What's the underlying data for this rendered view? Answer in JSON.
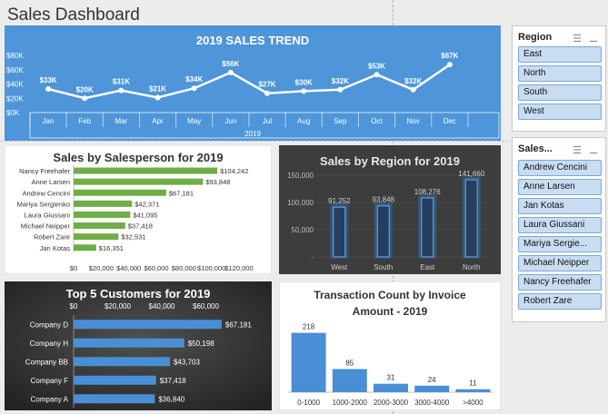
{
  "dashboard": {
    "title": "Sales Dashboard"
  },
  "trend": {
    "title": "2019 SALES TREND",
    "year": "2019",
    "chart_data": {
      "type": "line",
      "title": "2019 SALES TREND",
      "categories": [
        "Jan",
        "Feb",
        "Mar",
        "Apr",
        "May",
        "Jun",
        "Jul",
        "Aug",
        "Sep",
        "Oct",
        "Nov",
        "Dec"
      ],
      "values": [
        33,
        20,
        31,
        21,
        34,
        56,
        27,
        30,
        32,
        53,
        32,
        67
      ],
      "labels": [
        "$33K",
        "$20K",
        "$31K",
        "$21K",
        "$34K",
        "$56K",
        "$27K",
        "$30K",
        "$32K",
        "$53K",
        "$32K",
        "$67K"
      ],
      "yticks": [
        "$0K",
        "$20K",
        "$40K",
        "$60K",
        "$80K"
      ],
      "ylim": [
        0,
        80
      ],
      "xlabel": "2019"
    }
  },
  "salesperson": {
    "title": "Sales by Salesperson for 2019",
    "chart_data": {
      "type": "bar",
      "title": "Sales by Salesperson for 2019",
      "categories": [
        "Nancy Freehafer",
        "Anne Larsen",
        "Andrew Cencini",
        "Mariya Sergienko",
        "Laura Giussani",
        "Michael Neipper",
        "Robert Zare",
        "Jan Kotas"
      ],
      "values": [
        104242,
        93848,
        67181,
        42371,
        41095,
        37418,
        32531,
        16351
      ],
      "labels": [
        "$104,242",
        "$93,848",
        "$67,181",
        "$42,371",
        "$41,095",
        "$37,418",
        "$32,531",
        "$16,351"
      ],
      "xticks": [
        "$0",
        "$20,000",
        "$40,000",
        "$60,000",
        "$80,000",
        "$100,000",
        "$120,000"
      ],
      "xlim": [
        0,
        120000
      ]
    }
  },
  "region": {
    "title": "Sales by Region for 2019",
    "chart_data": {
      "type": "bar",
      "title": "Sales by Region for 2019",
      "categories": [
        "West",
        "South",
        "East",
        "North"
      ],
      "values": [
        91252,
        93848,
        108276,
        141660
      ],
      "labels": [
        "91,252",
        "93,848",
        "108,276",
        "141,660"
      ],
      "yticks": [
        "-",
        "50,000",
        "100,000",
        "150,000"
      ],
      "ylim": [
        0,
        150000
      ]
    }
  },
  "customers": {
    "title": "Top 5 Customers for 2019",
    "chart_data": {
      "type": "bar",
      "title": "Top 5 Customers for 2019",
      "categories": [
        "Company D",
        "Company H",
        "Company BB",
        "Company F",
        "Company A"
      ],
      "values": [
        67181,
        50198,
        43703,
        37418,
        36840
      ],
      "labels": [
        "$67,181",
        "$50,198",
        "$43,703",
        "$37,418",
        "$36,840"
      ],
      "xticks": [
        "$0",
        "$20,000",
        "$40,000",
        "$60,000"
      ],
      "xlim": [
        0,
        80000
      ]
    }
  },
  "transactions": {
    "title_line1": "Transaction Count by Invoice",
    "title_line2": "Amount - 2019",
    "chart_data": {
      "type": "bar",
      "title": "Transaction Count by Invoice Amount - 2019",
      "categories": [
        "0-1000",
        "1000-2000",
        "2000-3000",
        "3000-4000",
        ">4000"
      ],
      "values": [
        218,
        85,
        31,
        24,
        11
      ],
      "labels": [
        "218",
        "85",
        "31",
        "24",
        "11"
      ],
      "ylim": [
        0,
        240
      ]
    }
  },
  "slicers": {
    "region": {
      "header": "Region",
      "items": [
        "East",
        "North",
        "South",
        "West"
      ]
    },
    "salesperson": {
      "header": "Sales...",
      "items": [
        "Andrew Cencini",
        "Anne Larsen",
        "Jan Kotas",
        "Laura Giussani",
        "Mariya Sergie...",
        "Michael Neipper",
        "Nancy Freehafer",
        "Robert Zare"
      ]
    },
    "icons": {
      "multiselect": "multi-select-icon",
      "clear": "clear-filter-icon"
    }
  },
  "colors": {
    "trend_bg": "#4e95d9",
    "green": "#70ad47",
    "dark_bg": "#3b3b3b",
    "blue": "#4a8fd6",
    "slicer_item": "#c8dcf2"
  }
}
